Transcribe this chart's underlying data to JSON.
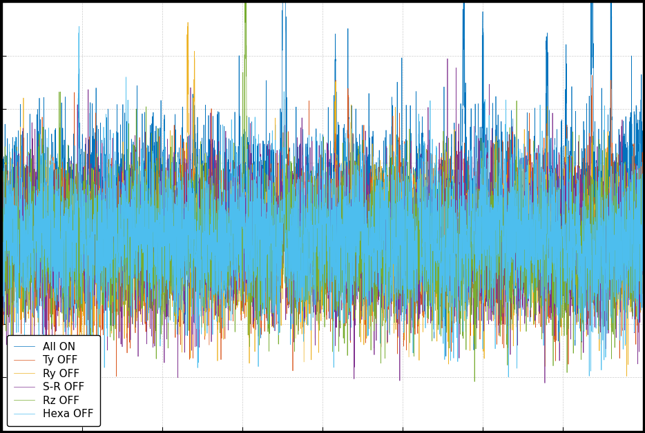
{
  "legend_labels": [
    "All ON",
    "Ty OFF",
    "Ry OFF",
    "S-R OFF",
    "Rz OFF",
    "Hexa OFF"
  ],
  "colors": [
    "#0072BD",
    "#D95319",
    "#EDB120",
    "#7E2F8E",
    "#77AC30",
    "#4DBEEE"
  ],
  "background_color": "#ffffff",
  "fig_background": "#000000",
  "grid_color": "#999999",
  "linewidth": 0.5,
  "n_points": 5000,
  "legend_loc": "lower left",
  "legend_fontsize": 11,
  "figsize": [
    9.34,
    6.28
  ],
  "dpi": 100,
  "xlim": [
    0,
    1
  ],
  "ylim": [
    -1.0,
    1.0
  ]
}
